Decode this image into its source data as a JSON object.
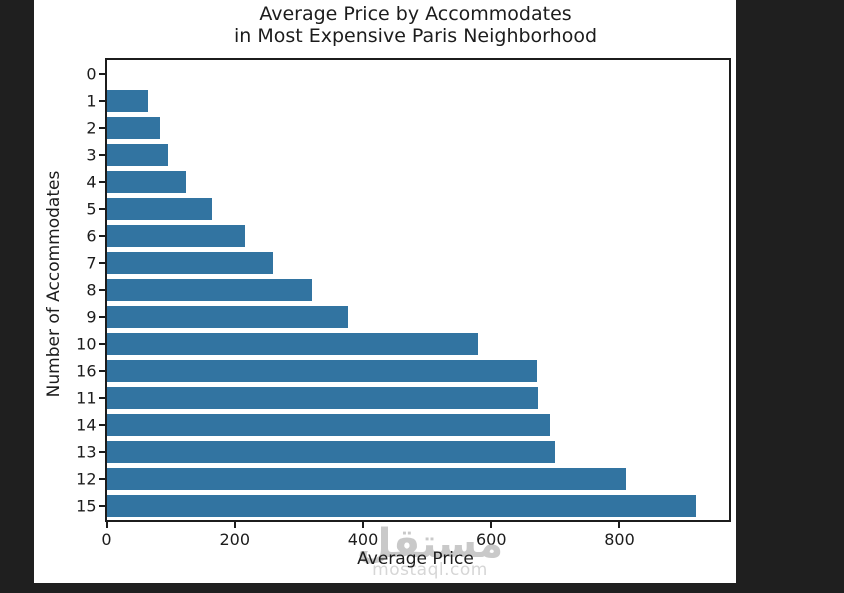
{
  "window": {
    "background_color": "#1f1f1f",
    "figure_background_color": "#ffffff"
  },
  "chart_data": {
    "type": "bar",
    "orientation": "horizontal",
    "title": "Average Price by Accommodates in Most Expensive Paris Neighborhood",
    "title_lines": [
      "Average Price by Accommodates",
      "in Most Expensive Paris Neighborhood"
    ],
    "xlabel": "Average Price",
    "ylabel": "Number of Accommodates",
    "categories": [
      "0",
      "1",
      "2",
      "3",
      "4",
      "5",
      "6",
      "7",
      "8",
      "9",
      "10",
      "16",
      "11",
      "14",
      "13",
      "12",
      "15"
    ],
    "values": [
      0,
      64,
      84,
      96,
      124,
      164,
      216,
      260,
      320,
      377,
      580,
      672,
      673,
      692,
      699,
      810,
      920
    ],
    "x_ticks": [
      0,
      200,
      400,
      600,
      800
    ],
    "xlim": [
      0,
      970
    ],
    "bar_color": "#3274a1",
    "grid": false,
    "legend": null,
    "axis_color": "#1c1c1c"
  },
  "watermark": {
    "text": "مستقل",
    "subtext": "mostaql.com"
  }
}
